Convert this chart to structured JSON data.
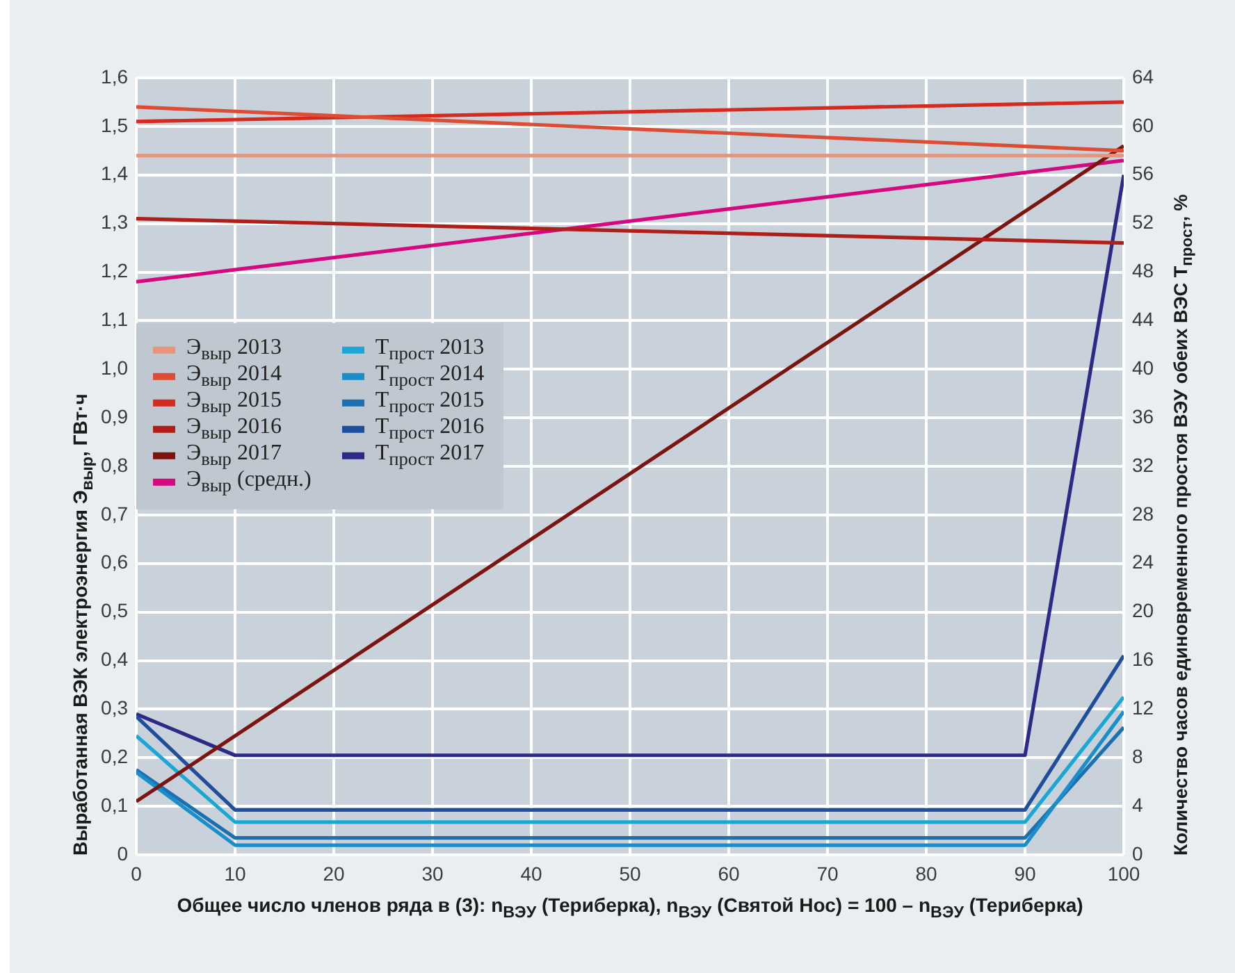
{
  "chart_data": {
    "type": "line",
    "xlabel": "Общее число членов ряда в (3): n$_{ВЭУ}$ (Териберка), n$_{ВЭУ}$ (Святой Нос) = 100 – n$_{ВЭУ}$ (Териберка)",
    "ylabel": "Выработанная ВЭК электроэнергия Э$_{выр}$, ГВт·ч",
    "y2label": "Количество часов единовременного простоя ВЭУ обеих ВЭС T$_{прост}$, %",
    "xlim": [
      0,
      100
    ],
    "xticks": [
      0,
      10,
      20,
      30,
      40,
      50,
      60,
      70,
      80,
      90,
      100
    ],
    "ylim": [
      0,
      1.6
    ],
    "yticks": [
      0,
      {
        "value": 0.1,
        "label": "0,1"
      },
      {
        "value": 0.2,
        "label": "0,2"
      },
      {
        "value": 0.3,
        "label": "0,3"
      },
      {
        "value": 0.4,
        "label": "0,4"
      },
      {
        "value": 0.5,
        "label": "0,5"
      },
      {
        "value": 0.6,
        "label": "0,6"
      },
      {
        "value": 0.7,
        "label": "0,7"
      },
      {
        "value": 0.8,
        "label": "0,8"
      },
      {
        "value": 0.9,
        "label": "0,9"
      },
      {
        "value": 1.0,
        "label": "1,0"
      },
      {
        "value": 1.1,
        "label": "1,1"
      },
      {
        "value": 1.2,
        "label": "1,2"
      },
      {
        "value": 1.3,
        "label": "1,3"
      },
      {
        "value": 1.4,
        "label": "1,4"
      },
      {
        "value": 1.5,
        "label": "1,5"
      },
      {
        "value": 1.6,
        "label": "1,6"
      }
    ],
    "y2lim": [
      0,
      64
    ],
    "y2ticks": [
      0,
      4,
      8,
      12,
      16,
      20,
      24,
      28,
      32,
      36,
      40,
      44,
      48,
      52,
      56,
      60,
      64
    ],
    "grid": true,
    "legend": "left",
    "series": [
      {
        "name": "Э$_{выр}$ 2013",
        "color": "#e8937a",
        "x": [
          0,
          100
        ],
        "values": [
          1.44,
          1.44
        ]
      },
      {
        "name": "Э$_{выр}$ 2014",
        "color": "#dc4d33",
        "x": [
          0,
          100
        ],
        "values": [
          1.54,
          1.45
        ]
      },
      {
        "name": "Э$_{выр}$ 2015",
        "color": "#d42a20",
        "x": [
          0,
          100
        ],
        "values": [
          1.51,
          1.55
        ]
      },
      {
        "name": "Э$_{выр}$ 2016",
        "color": "#b01e1a",
        "x": [
          0,
          100
        ],
        "values": [
          1.31,
          1.26
        ]
      },
      {
        "name": "Э$_{выр}$ 2017",
        "color": "#7c1410",
        "x": [
          0,
          100
        ],
        "values": [
          0.11,
          1.46
        ]
      },
      {
        "name": "Э$_{выр}$ (средн.)",
        "color": "#d6087f",
        "x": [
          0,
          100
        ],
        "values": [
          1.18,
          1.43
        ]
      },
      {
        "name": "T$_{прост}$ 2013",
        "color": "#1ba6d6",
        "axis": "y2",
        "x": [
          0,
          10,
          90,
          100
        ],
        "values": [
          9.8,
          2.7,
          2.7,
          13.0
        ]
      },
      {
        "name": "T$_{прост}$ 2014",
        "color": "#1a8ecb",
        "axis": "y2",
        "x": [
          0,
          10,
          90,
          100
        ],
        "values": [
          6.8,
          0.8,
          0.8,
          11.8
        ]
      },
      {
        "name": "T$_{прост}$ 2015",
        "color": "#1b70b0",
        "axis": "y2",
        "x": [
          0,
          10,
          90,
          100
        ],
        "values": [
          7.0,
          1.4,
          1.4,
          10.5
        ]
      },
      {
        "name": "T$_{прост}$ 2016",
        "color": "#1e4e9c",
        "axis": "y2",
        "x": [
          0,
          10,
          90,
          100
        ],
        "values": [
          11.4,
          3.7,
          3.7,
          16.4
        ]
      },
      {
        "name": "T$_{прост}$ 2017",
        "color": "#2c2a86",
        "axis": "y2",
        "x": [
          0,
          10,
          90,
          100
        ],
        "values": [
          11.6,
          8.2,
          8.2,
          56
        ]
      }
    ]
  }
}
